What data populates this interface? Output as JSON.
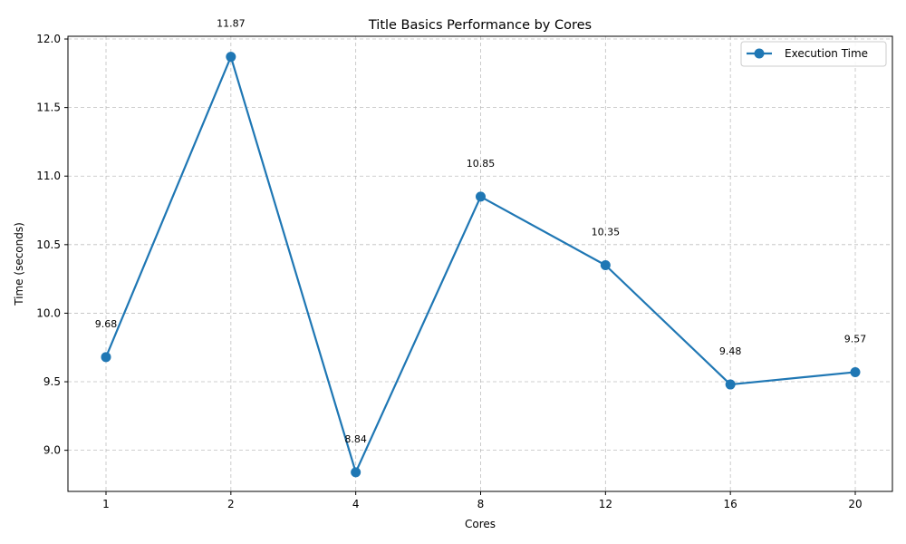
{
  "chart_data": {
    "type": "line",
    "title": "Title Basics Performance by Cores",
    "xlabel": "Cores",
    "ylabel": "Time (seconds)",
    "categories": [
      "1",
      "2",
      "4",
      "8",
      "12",
      "16",
      "20"
    ],
    "series": [
      {
        "name": "Execution Time",
        "values": [
          9.68,
          11.87,
          8.84,
          10.85,
          10.35,
          9.48,
          9.57
        ],
        "color": "#1f77b4"
      }
    ],
    "data_labels": [
      "9.68",
      "11.87",
      "8.84",
      "10.85",
      "10.35",
      "9.48",
      "9.57"
    ],
    "ylim": [
      8.7,
      12.02
    ],
    "yticks": [
      9.0,
      9.5,
      10.0,
      10.5,
      11.0,
      11.5,
      12.0
    ],
    "ytick_labels": [
      "9.0",
      "9.5",
      "10.0",
      "10.5",
      "11.0",
      "11.5",
      "12.0"
    ],
    "grid": true,
    "legend_position": "top-right"
  }
}
